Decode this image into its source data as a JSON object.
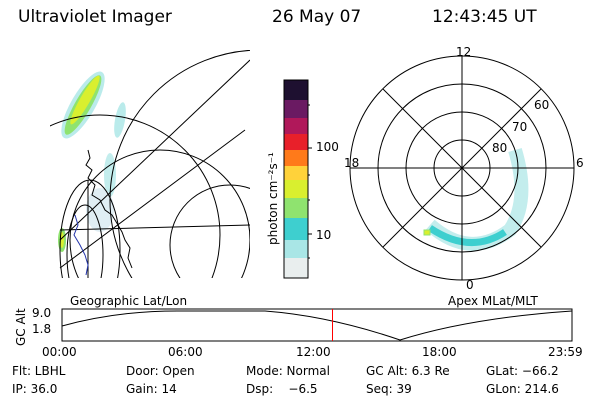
{
  "header": {
    "instrument": "Ultraviolet Imager",
    "date": "26 May 07",
    "time": "12:43:45 UT"
  },
  "colorbar": {
    "unit_label": "photon cm⁻²s⁻¹",
    "ticks": [
      "100",
      "10"
    ],
    "scale": "log",
    "colors": [
      "#e9eeee",
      "#a9e6e6",
      "#3ecfcf",
      "#8fe36f",
      "#d9ef2f",
      "#ffd23a",
      "#ff7a1a",
      "#e8202a",
      "#b0185a",
      "#6a1a62",
      "#1e1030"
    ]
  },
  "polar_plot": {
    "mlt_labels": [
      "12",
      "18",
      "6",
      "0"
    ],
    "lat_labels": [
      "60",
      "70",
      "80"
    ]
  },
  "map_labels": {
    "left": "Geographic Lat/Lon",
    "right": "Apex MLat/MLT"
  },
  "altitude_panel": {
    "axis_title": "GC Alt",
    "y_ticks": [
      "9.0",
      "1.8"
    ],
    "x_ticks": [
      "00:00",
      "06:00",
      "12:00",
      "18:00",
      "23:59"
    ],
    "current_time_marker_hours": 12.73,
    "curve_line_color": "#000000",
    "marker_color": "#ff0000"
  },
  "footer": {
    "row1": [
      "Flt: LBHL",
      "Door: Open",
      "Mode: Normal",
      "GC Alt: 6.3 Re",
      "GLat: −66.2"
    ],
    "row2": [
      "IP: 36.0",
      "Gain: 14",
      "Dsp:    −6.5",
      "Seq: 39",
      "GLon: 214.6"
    ]
  }
}
